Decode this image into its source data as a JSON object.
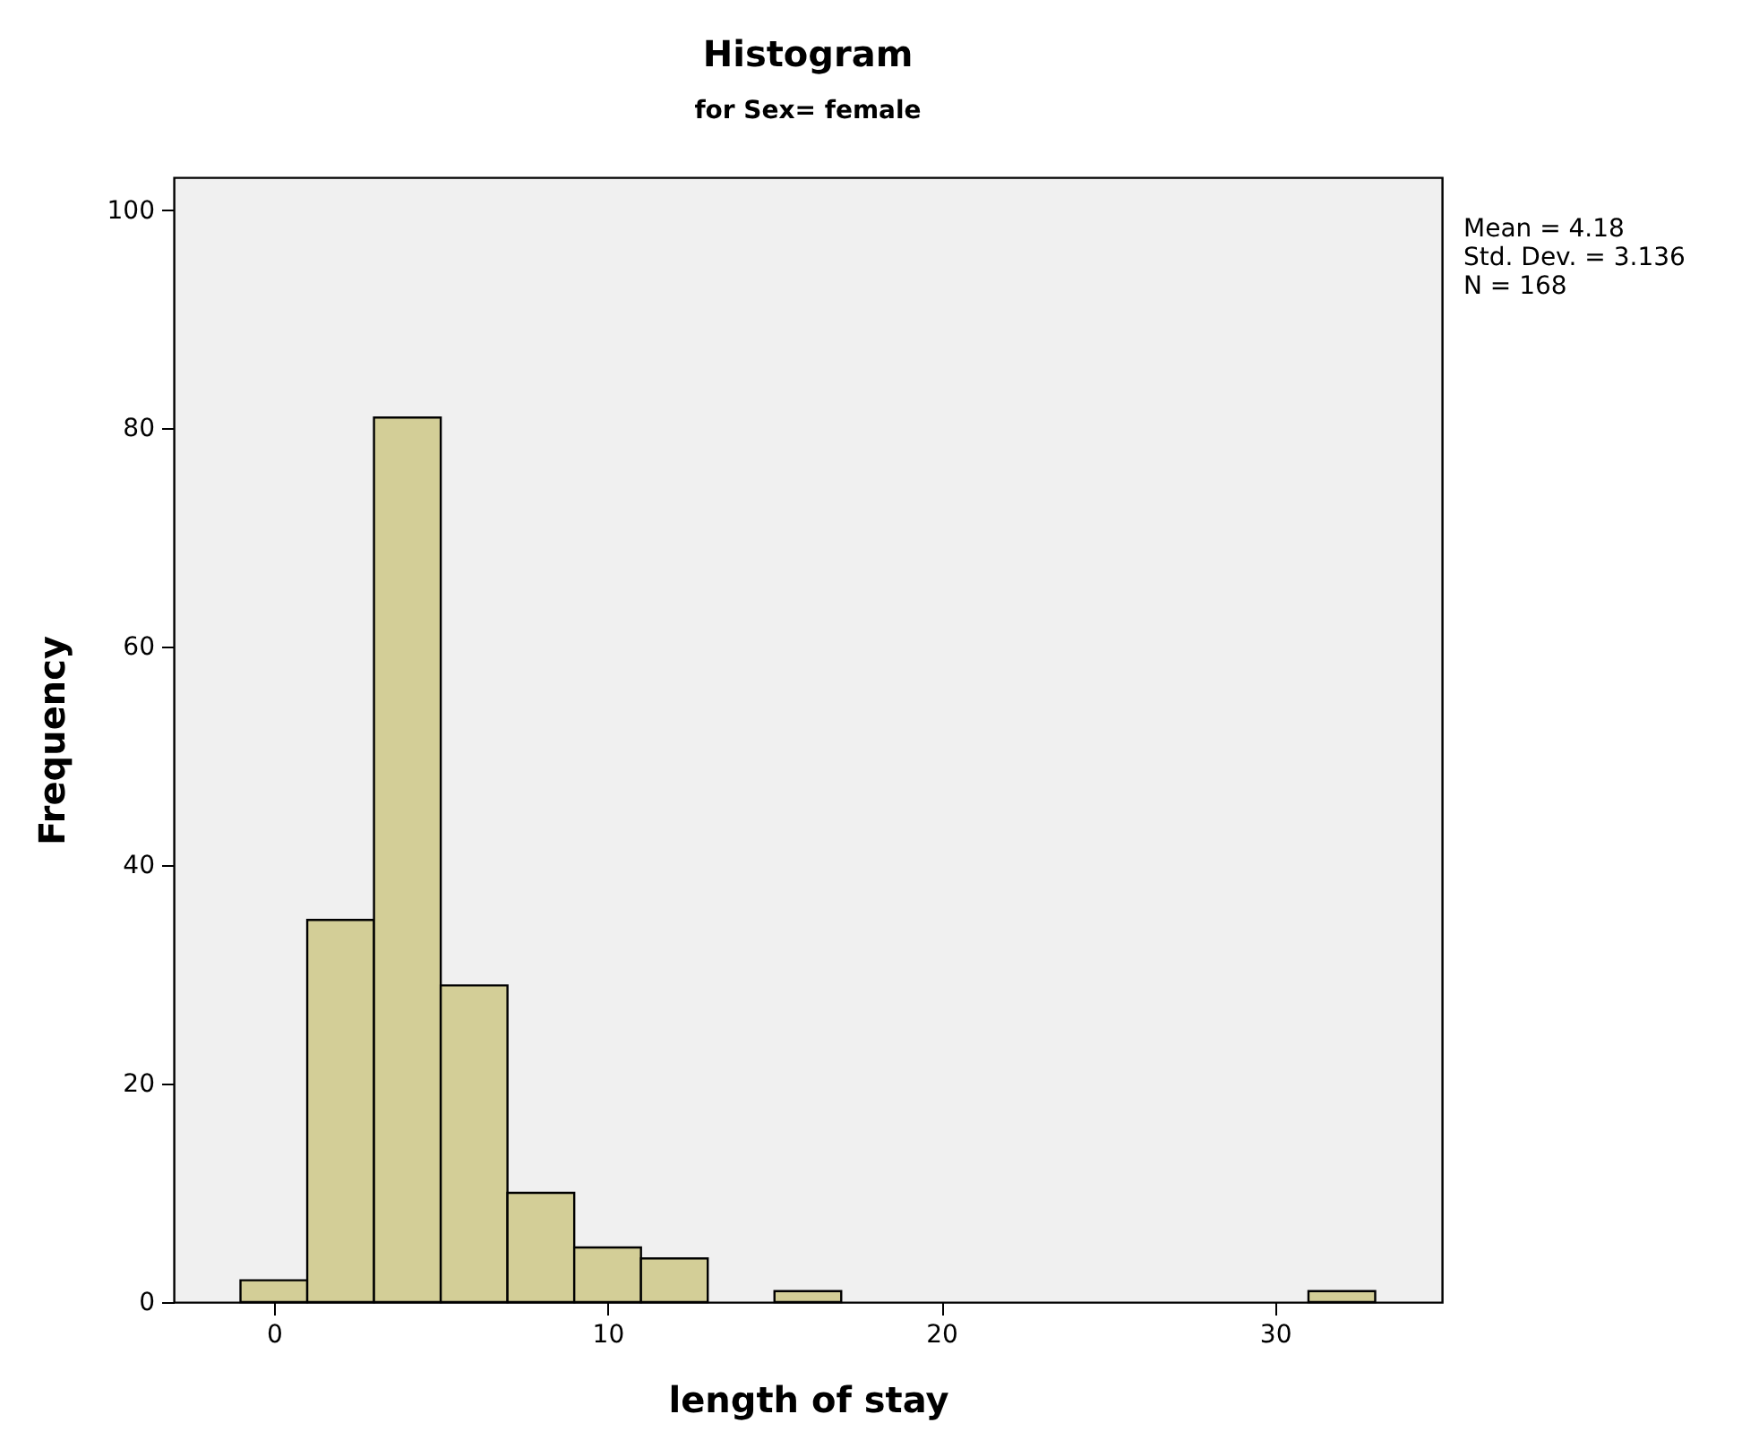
{
  "chart_data": {
    "type": "histogram",
    "title": "Histogram",
    "subtitle": "for Sex= female",
    "xlabel": "length of stay",
    "ylabel": "Frequency",
    "bins": [
      -1,
      1,
      3,
      5,
      7,
      9,
      11,
      13,
      15,
      17,
      31,
      33
    ],
    "values": [
      2,
      35,
      81,
      29,
      10,
      5,
      4,
      0,
      1,
      0,
      1
    ],
    "color": "#d3ce97",
    "xlim": [
      -3,
      35
    ],
    "xticks": [
      0,
      10,
      20,
      30
    ],
    "ylim": [
      0,
      103
    ],
    "yticks": [
      0,
      20,
      40,
      60,
      80,
      100
    ],
    "annotations": [
      "Mean = 4.18",
      "Std. Dev. = 3.136",
      "N = 168"
    ]
  }
}
